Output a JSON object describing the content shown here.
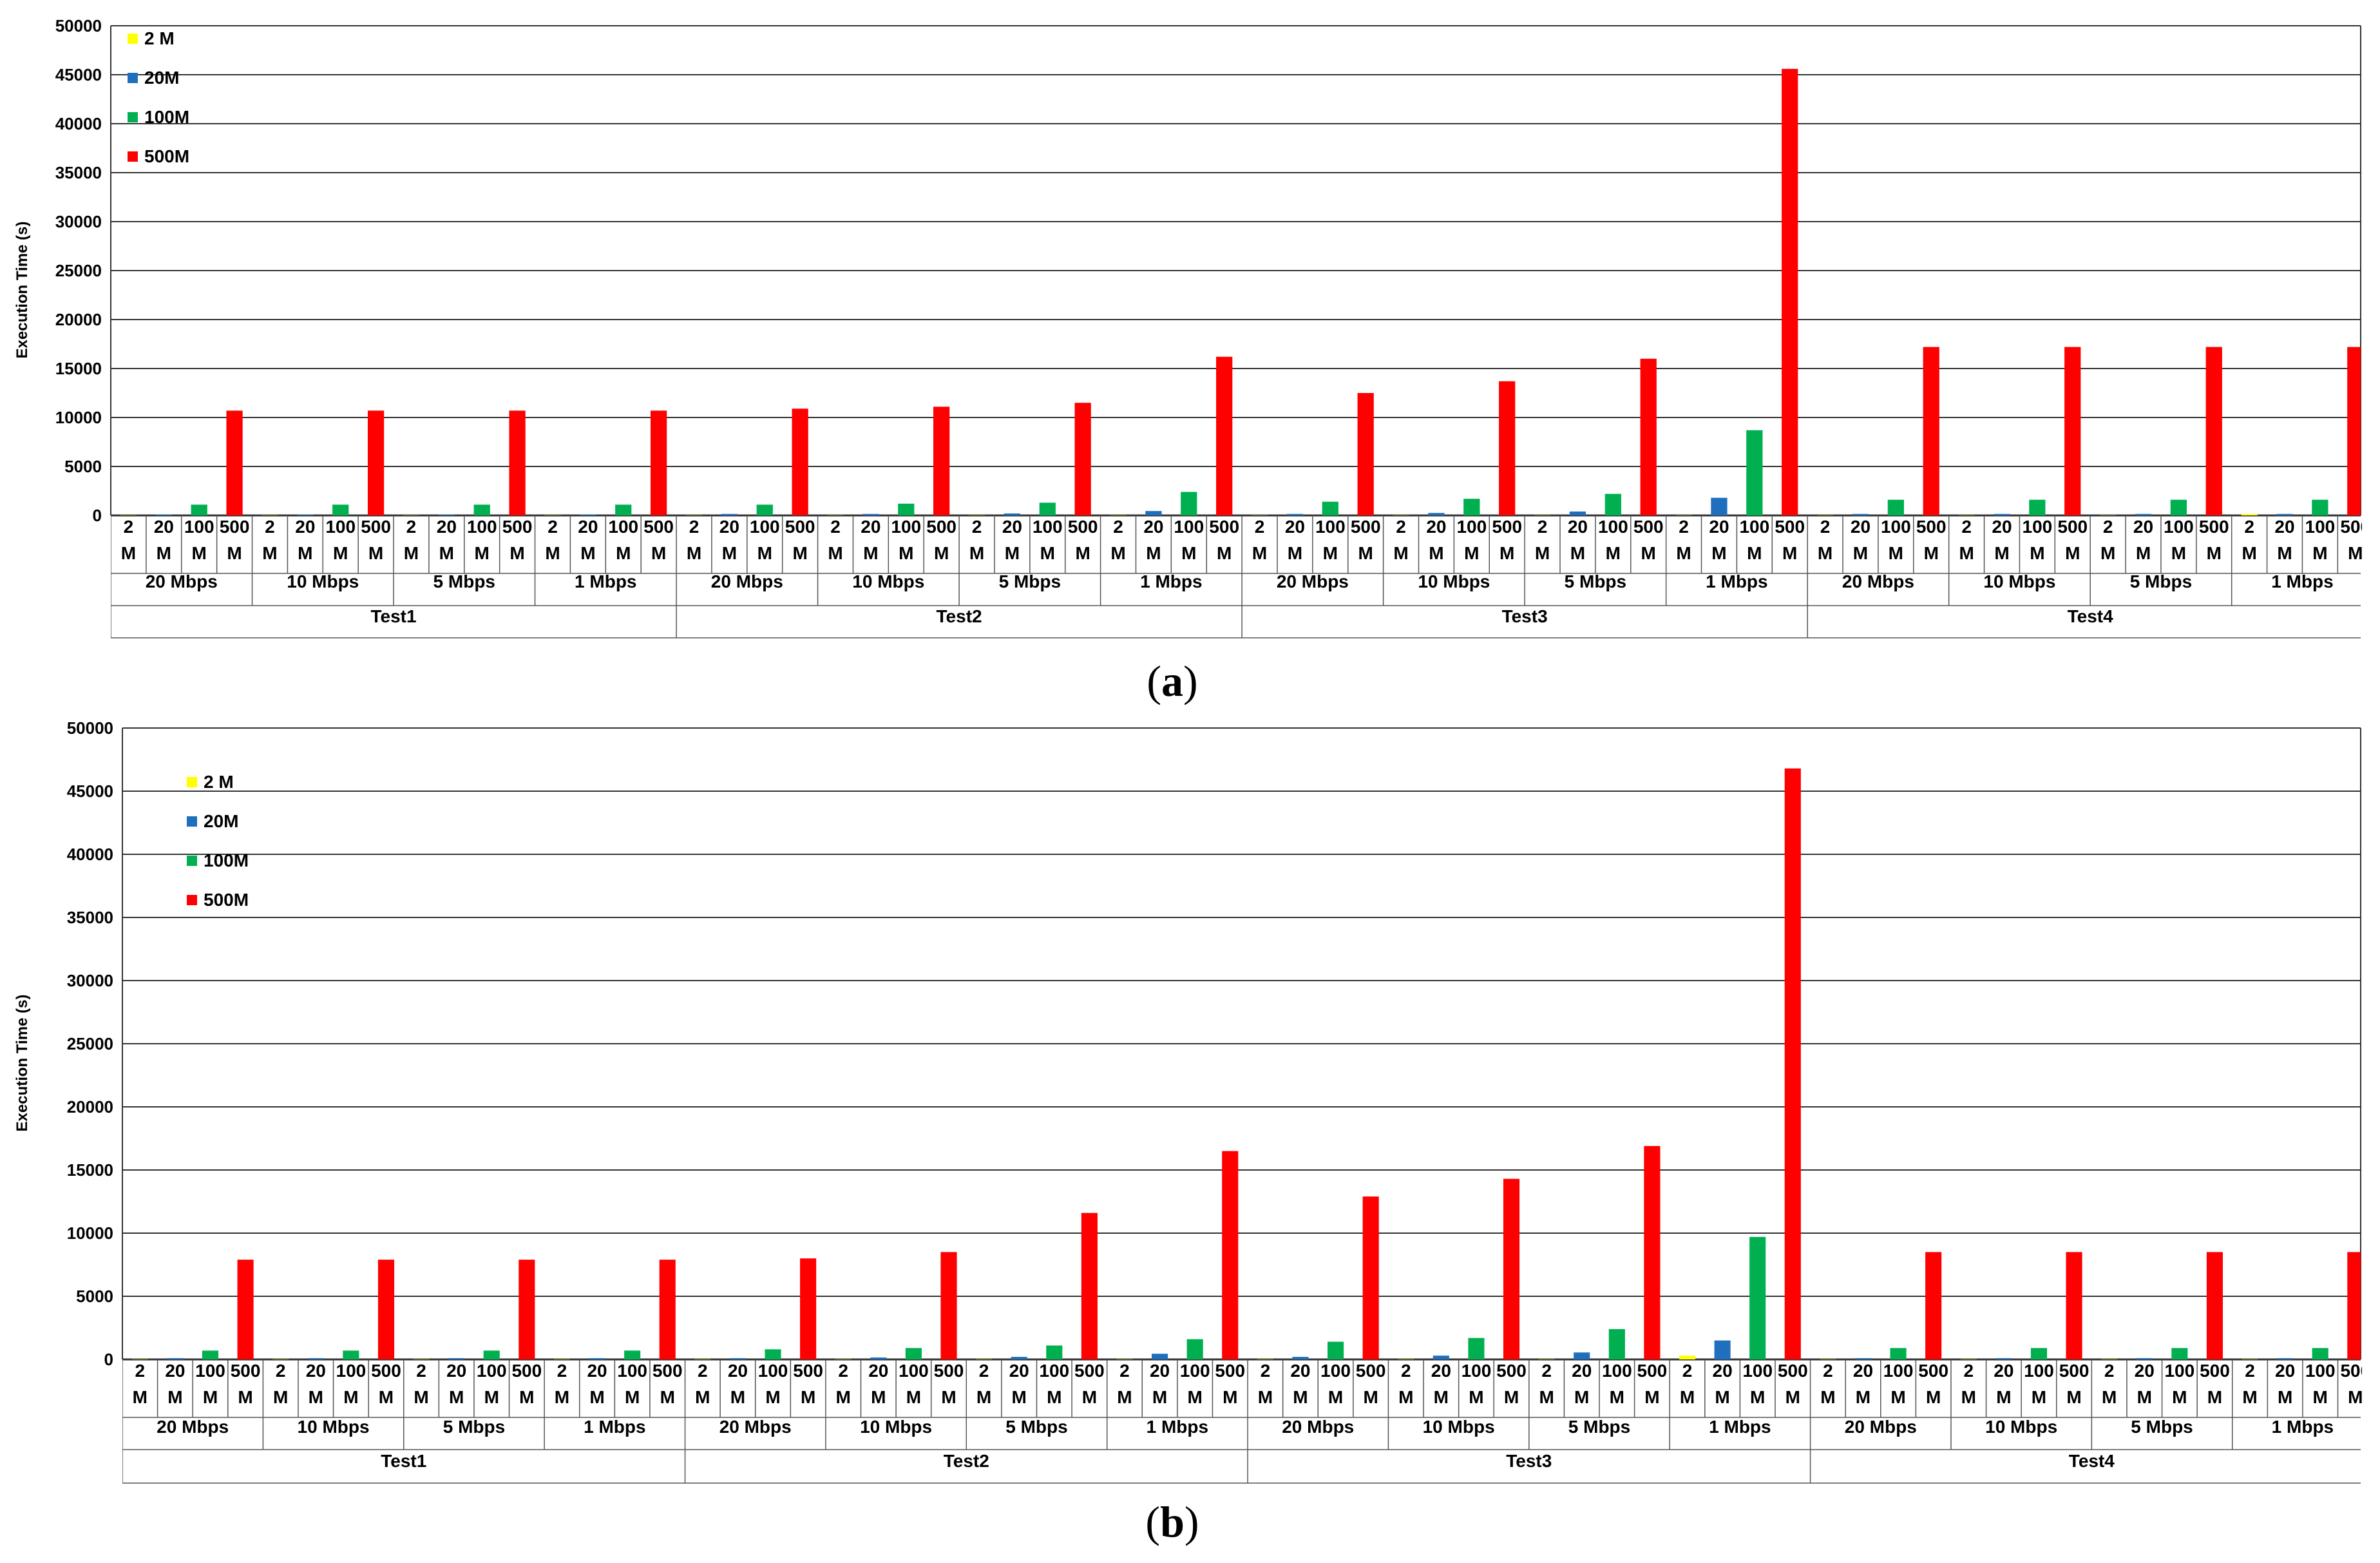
{
  "colors": {
    "2 M": "#ffff00",
    "20M": "#1f6fbf",
    "100M": "#00b050",
    "500M": "#ff0000"
  },
  "chart_data": [
    {
      "type": "bar",
      "panel_label": "a",
      "ylabel": "Execution Time (s)",
      "ylim": [
        0,
        50000
      ],
      "yticks": [
        0,
        5000,
        10000,
        15000,
        20000,
        25000,
        30000,
        35000,
        40000,
        45000,
        50000
      ],
      "grid": true,
      "legend_position": "top-left",
      "category_labels": [
        "2 M",
        "20 M",
        "100 M",
        "500 M"
      ],
      "bandwidths": [
        "20 Mbps",
        "10 Mbps",
        "5 Mbps",
        "1 Mbps"
      ],
      "tests": [
        "Test1",
        "Test2",
        "Test3",
        "Test4"
      ],
      "series": [
        {
          "name": "2 M",
          "values": [
            20,
            20,
            20,
            20,
            20,
            20,
            20,
            20,
            20,
            20,
            20,
            20,
            20,
            20,
            20,
            150
          ]
        },
        {
          "name": "20M",
          "values": [
            80,
            80,
            80,
            80,
            150,
            150,
            200,
            450,
            150,
            250,
            400,
            1800,
            150,
            150,
            150,
            150
          ]
        },
        {
          "name": "100M",
          "values": [
            1100,
            1100,
            1100,
            1100,
            1100,
            1200,
            1300,
            2400,
            1400,
            1700,
            2200,
            8700,
            1600,
            1600,
            1600,
            1600
          ]
        },
        {
          "name": "500M",
          "values": [
            10700,
            10700,
            10700,
            10700,
            10900,
            11100,
            11500,
            16200,
            12500,
            13700,
            16000,
            45600,
            17200,
            17200,
            17200,
            17200
          ]
        }
      ]
    },
    {
      "type": "bar",
      "panel_label": "b",
      "ylabel": "Execution Time (s)",
      "ylim": [
        0,
        50000
      ],
      "yticks": [
        0,
        5000,
        10000,
        15000,
        20000,
        25000,
        30000,
        35000,
        40000,
        45000,
        50000
      ],
      "grid": true,
      "legend_position": "top-left",
      "category_labels": [
        "2 M",
        "20 M",
        "100 M",
        "500 M"
      ],
      "bandwidths": [
        "20 Mbps",
        "10 Mbps",
        "5 Mbps",
        "1 Mbps"
      ],
      "tests": [
        "Test1",
        "Test2",
        "Test3",
        "Test4"
      ],
      "series": [
        {
          "name": "2 M",
          "values": [
            20,
            20,
            20,
            20,
            20,
            20,
            20,
            20,
            20,
            20,
            20,
            300,
            20,
            20,
            20,
            20
          ]
        },
        {
          "name": "20M",
          "values": [
            100,
            100,
            100,
            100,
            100,
            150,
            200,
            450,
            200,
            300,
            550,
            1500,
            100,
            100,
            100,
            100
          ]
        },
        {
          "name": "100M",
          "values": [
            700,
            700,
            700,
            700,
            800,
            900,
            1100,
            1600,
            1400,
            1700,
            2400,
            9700,
            900,
            900,
            900,
            900
          ]
        },
        {
          "name": "500M",
          "values": [
            7900,
            7900,
            7900,
            7900,
            8000,
            8500,
            11600,
            16500,
            12900,
            14300,
            16900,
            46800,
            8500,
            8500,
            8500,
            8500
          ]
        }
      ]
    }
  ]
}
